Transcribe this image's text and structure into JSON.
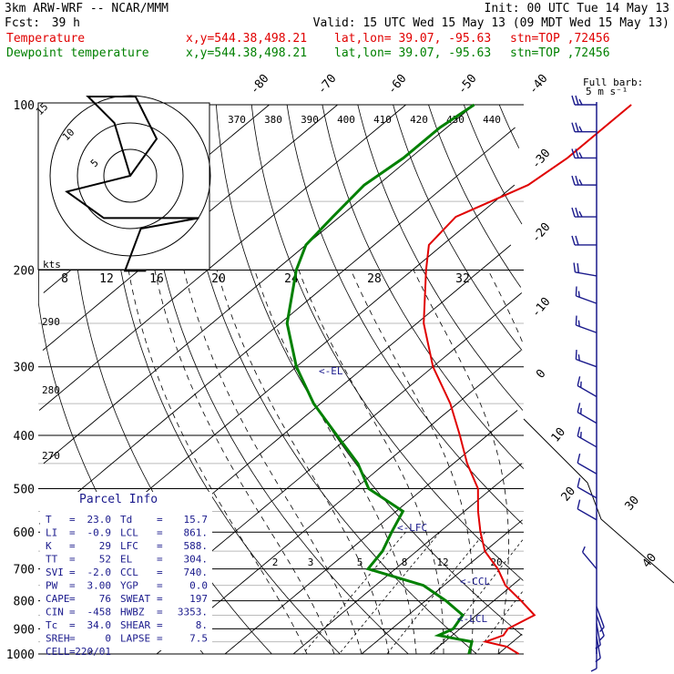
{
  "header": {
    "model": "3km ARW-WRF -- NCAR/MMM",
    "init": "Init: 00 UTC Tue 14 May 13",
    "fcst_label": "Fcst:",
    "fcst_hours": "39 h",
    "valid": "Valid: 15 UTC Wed 15 May 13 (09 MDT Wed 15 May 13)"
  },
  "legend": [
    {
      "name": "Temperature",
      "coords": "x,y=544.38,498.21",
      "latlon": "lat,lon= 39.07, -95.63",
      "stn": "stn=TOP ,72456",
      "color": "#e00000"
    },
    {
      "name": "Dewpoint temperature",
      "coords": "x,y=544.38,498.21",
      "latlon": "lat,lon= 39.07, -95.63",
      "stn": "stn=TOP ,72456",
      "color": "#008000"
    }
  ],
  "barb_key": {
    "line1": "Full barb:",
    "line2": "5 m s⁻¹"
  },
  "hodograph": {
    "units": "kts",
    "ring_labels": [
      "5",
      "10",
      "15"
    ]
  },
  "parcel_info": {
    "title": "Parcel Info",
    "rows": [
      {
        "l": "T",
        "lv": "23.0",
        "r": "Td",
        "rv": "15.7"
      },
      {
        "l": "LI",
        "lv": "-0.9",
        "r": "LCL",
        "rv": "861."
      },
      {
        "l": "K",
        "lv": "29",
        "r": "LFC",
        "rv": "588."
      },
      {
        "l": "TT",
        "lv": "52",
        "r": "EL",
        "rv": "304."
      },
      {
        "l": "SVI",
        "lv": "-2.0",
        "r": "CCL",
        "rv": "740."
      },
      {
        "l": "PW",
        "lv": "3.00",
        "r": "YGP",
        "rv": "0.0"
      },
      {
        "l": "CAPE",
        "lv": "76",
        "r": "SWEAT",
        "rv": "197"
      },
      {
        "l": "CIN",
        "lv": "-458",
        "r": "HWBZ",
        "rv": "3353."
      },
      {
        "l": "Tc",
        "lv": "34.0",
        "r": "SHEAR",
        "rv": "8."
      },
      {
        "l": "SREH",
        "lv": "0",
        "r": "LAPSE",
        "rv": "7.5"
      },
      {
        "l": "CELL",
        "lv": "220/01",
        "r": "",
        "rv": ""
      }
    ]
  },
  "level_markers": [
    "<-EL",
    "<-LFC",
    "<-CCL",
    "<-LCL"
  ],
  "chart_data": {
    "type": "skew-t log-p",
    "pressure_levels": [
      100,
      200,
      300,
      400,
      500,
      600,
      700,
      800,
      900,
      1000
    ],
    "isotherm_labels": [
      "-80",
      "-70",
      "-60",
      "-50",
      "-40",
      "-30",
      "-20",
      "-10",
      "0",
      "10",
      "20",
      "30",
      "40"
    ],
    "theta_labels": [
      "370",
      "380",
      "390",
      "400",
      "410",
      "420",
      "430",
      "440"
    ],
    "dry_adiabat_labels": [
      "290",
      "280",
      "270"
    ],
    "mixing_ratio_upper_labels": [
      "8",
      "12",
      "16",
      "20",
      "24",
      "28",
      "32"
    ],
    "mixing_ratio_lower_labels": [
      "2",
      "3",
      "5",
      "8",
      "12",
      "20"
    ],
    "series": [
      {
        "name": "Temperature",
        "color": "#e00000",
        "points": [
          [
            1000,
            23
          ],
          [
            970,
            20
          ],
          [
            950,
            16
          ],
          [
            925,
            17.5
          ],
          [
            900,
            17
          ],
          [
            850,
            18.5
          ],
          [
            800,
            14
          ],
          [
            750,
            9
          ],
          [
            700,
            5
          ],
          [
            650,
            0
          ],
          [
            600,
            -4
          ],
          [
            550,
            -8
          ],
          [
            500,
            -12
          ],
          [
            450,
            -18
          ],
          [
            400,
            -24
          ],
          [
            350,
            -31
          ],
          [
            300,
            -40
          ],
          [
            250,
            -49
          ],
          [
            200,
            -58
          ],
          [
            180,
            -62
          ],
          [
            160,
            -63
          ],
          [
            140,
            -58
          ],
          [
            125,
            -57
          ],
          [
            110,
            -57
          ],
          [
            100,
            -57
          ]
        ]
      },
      {
        "name": "Dewpoint temperature",
        "color": "#008000",
        "points": [
          [
            1000,
            15.7
          ],
          [
            950,
            14
          ],
          [
            925,
            8
          ],
          [
            900,
            9
          ],
          [
            850,
            8
          ],
          [
            800,
            3
          ],
          [
            750,
            -3
          ],
          [
            700,
            -14
          ],
          [
            650,
            -15
          ],
          [
            600,
            -17
          ],
          [
            550,
            -19
          ],
          [
            500,
            -28
          ],
          [
            450,
            -34
          ],
          [
            400,
            -42
          ],
          [
            350,
            -51
          ],
          [
            300,
            -60
          ],
          [
            250,
            -69
          ],
          [
            200,
            -77
          ],
          [
            180,
            -80
          ],
          [
            160,
            -81
          ],
          [
            140,
            -82
          ],
          [
            125,
            -81
          ],
          [
            110,
            -81
          ],
          [
            100,
            -80
          ]
        ]
      }
    ],
    "wind_barbs": [
      {
        "p": 100,
        "speed": 25,
        "dir": 270
      },
      {
        "p": 112,
        "speed": 25,
        "dir": 270
      },
      {
        "p": 125,
        "speed": 25,
        "dir": 270
      },
      {
        "p": 140,
        "speed": 25,
        "dir": 270
      },
      {
        "p": 160,
        "speed": 25,
        "dir": 270
      },
      {
        "p": 180,
        "speed": 20,
        "dir": 270
      },
      {
        "p": 205,
        "speed": 20,
        "dir": 280
      },
      {
        "p": 230,
        "speed": 15,
        "dir": 290
      },
      {
        "p": 260,
        "speed": 15,
        "dir": 290
      },
      {
        "p": 300,
        "speed": 15,
        "dir": 290
      },
      {
        "p": 340,
        "speed": 15,
        "dir": 300
      },
      {
        "p": 380,
        "speed": 15,
        "dir": 300
      },
      {
        "p": 420,
        "speed": 15,
        "dir": 300
      },
      {
        "p": 470,
        "speed": 10,
        "dir": 300
      },
      {
        "p": 520,
        "speed": 10,
        "dir": 300
      },
      {
        "p": 570,
        "speed": 10,
        "dir": 300
      },
      {
        "p": 700,
        "speed": 5,
        "dir": 320
      },
      {
        "p": 820,
        "speed": 5,
        "dir": 160
      },
      {
        "p": 850,
        "speed": 5,
        "dir": 160
      },
      {
        "p": 880,
        "speed": 5,
        "dir": 170
      },
      {
        "p": 930,
        "speed": 5,
        "dir": 170
      },
      {
        "p": 970,
        "speed": 5,
        "dir": 180
      }
    ],
    "hodograph_trace": [
      [
        0,
        0
      ],
      [
        -3,
        -10
      ],
      [
        -8,
        -15
      ],
      [
        1,
        -15
      ],
      [
        5,
        -7
      ],
      [
        0,
        0
      ],
      [
        -12,
        3
      ],
      [
        -5,
        8
      ],
      [
        13,
        8
      ],
      [
        2,
        10
      ],
      [
        -1,
        18
      ],
      [
        3,
        18
      ]
    ]
  }
}
